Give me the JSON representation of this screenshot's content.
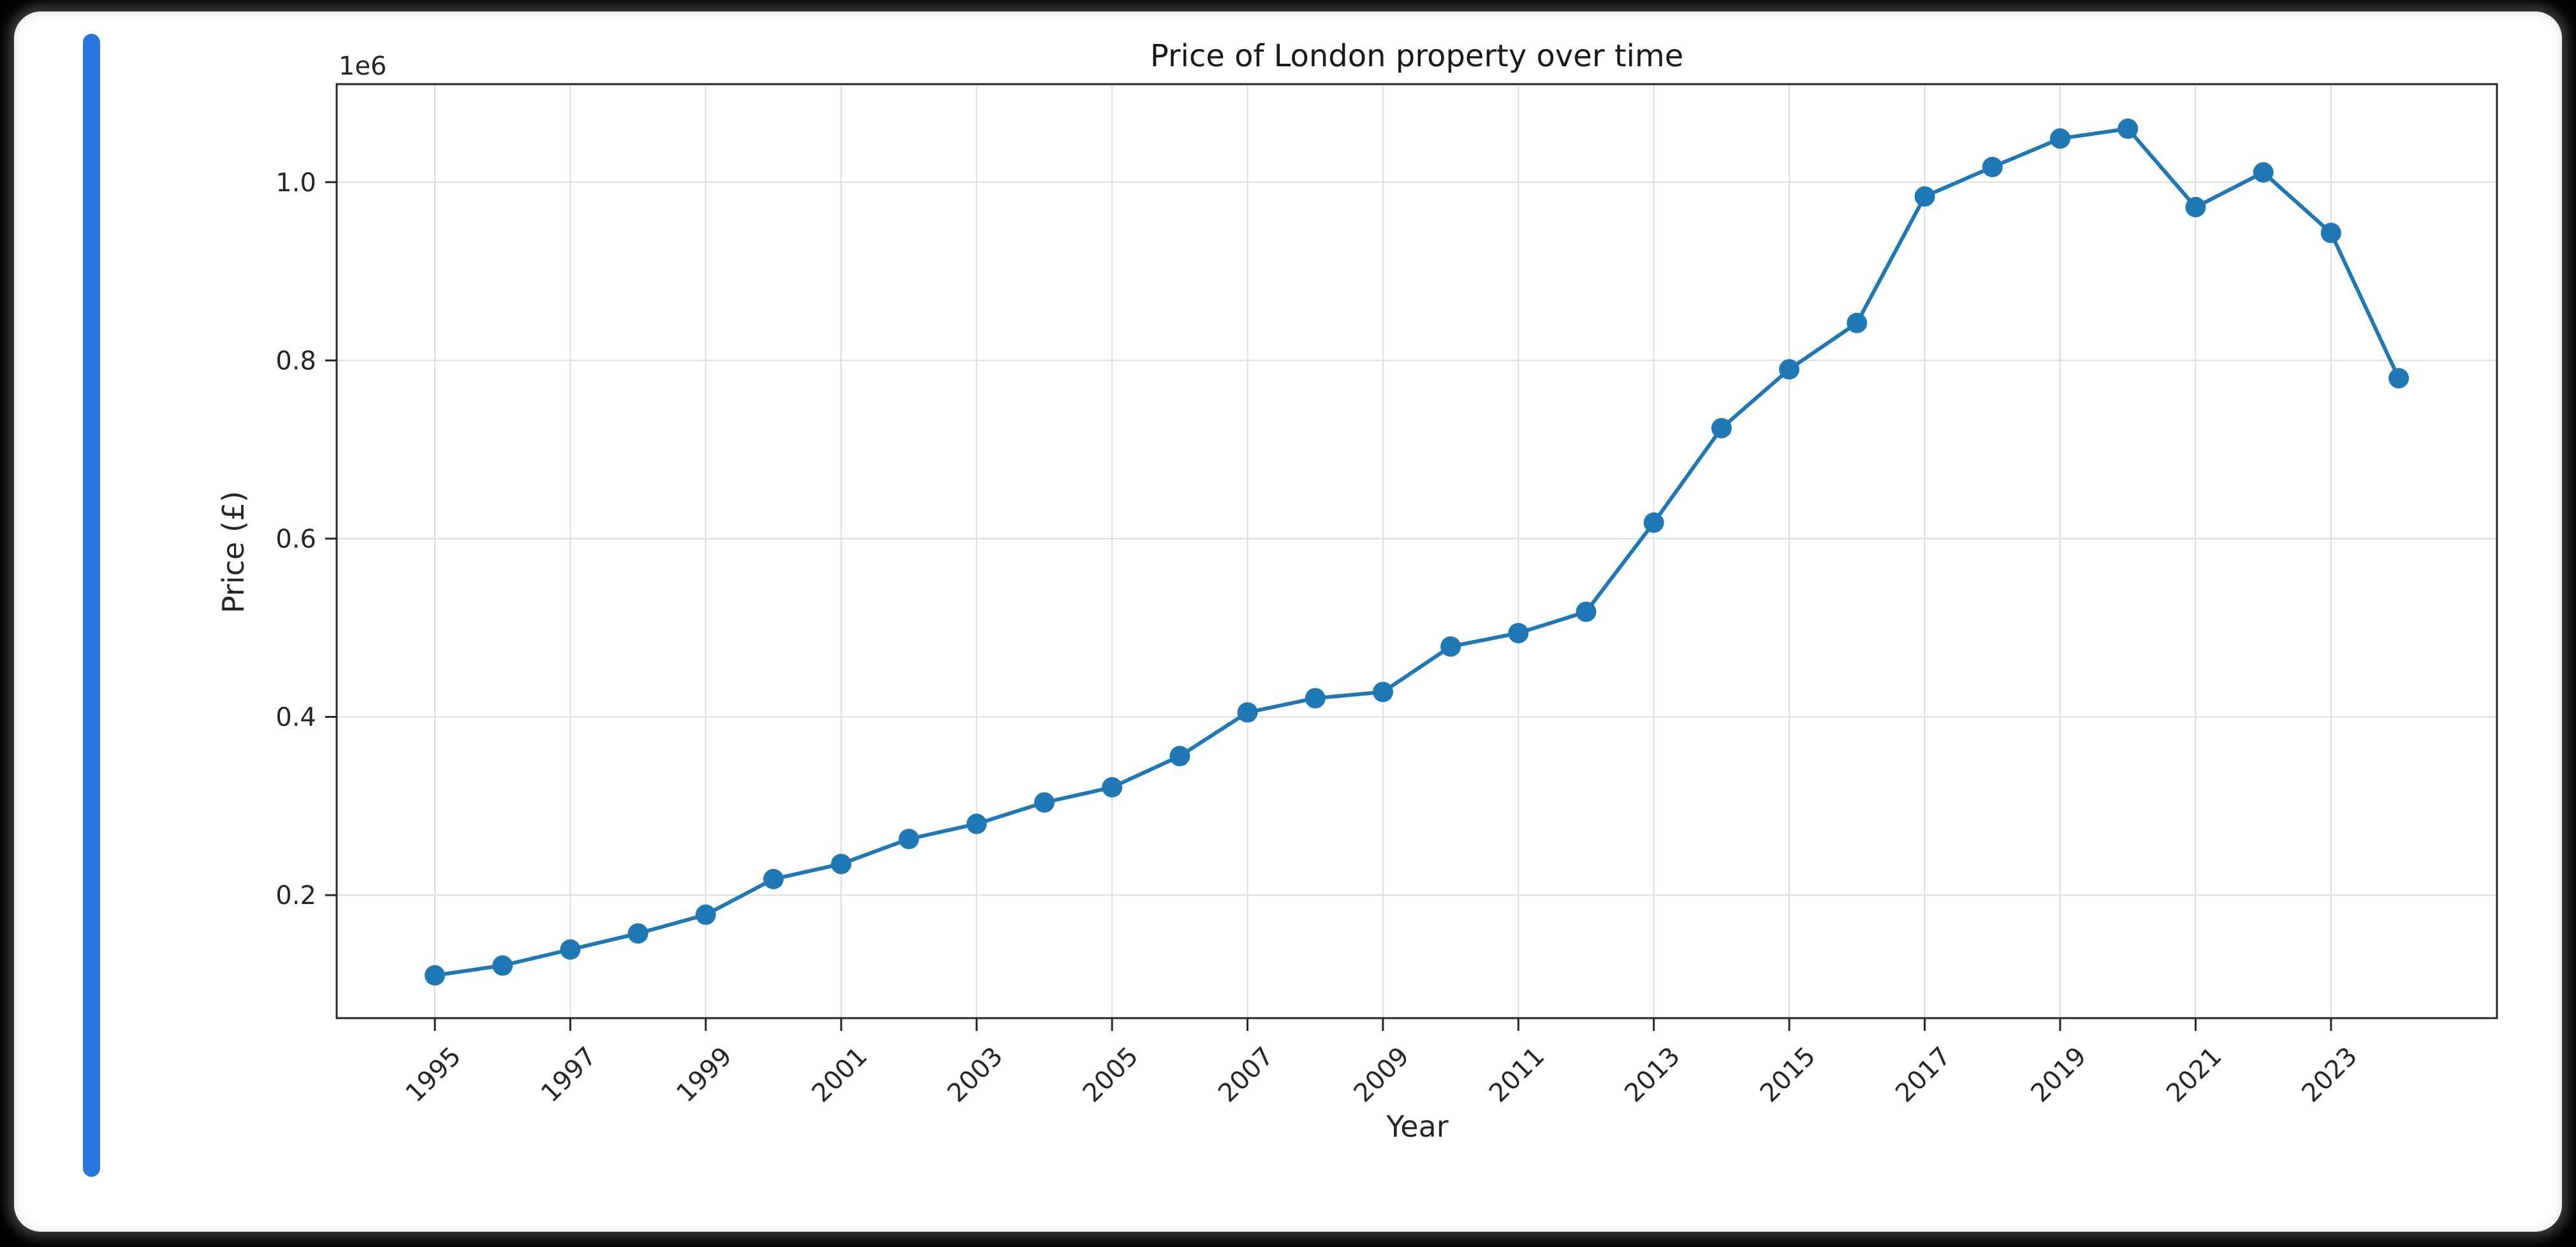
{
  "window": {
    "background_color": "#000000",
    "card_color": "#ffffff",
    "card_edge_color": "#cfcfcf",
    "scrollbar_color": "#2878dc"
  },
  "chart_data": {
    "type": "line",
    "title": "Price of London property over time",
    "xlabel": "Year",
    "ylabel": "Price (£)",
    "y_offset_label": "1e6",
    "legend": "none",
    "grid": true,
    "x": [
      1995,
      1996,
      1997,
      1998,
      1999,
      2000,
      2001,
      2002,
      2003,
      2004,
      2005,
      2006,
      2007,
      2008,
      2009,
      2010,
      2011,
      2012,
      2013,
      2014,
      2015,
      2016,
      2017,
      2018,
      2019,
      2020,
      2021,
      2022,
      2023,
      2024
    ],
    "values": [
      110000,
      121000,
      139000,
      157000,
      178000,
      218000,
      235000,
      263000,
      280000,
      304000,
      321000,
      356000,
      405000,
      421000,
      428000,
      479000,
      494000,
      518000,
      618000,
      724000,
      790000,
      842000,
      984000,
      1017000,
      1049000,
      1060000,
      972000,
      1011000,
      943000,
      780000
    ],
    "xticks": [
      1995,
      1997,
      1999,
      2001,
      2003,
      2005,
      2007,
      2009,
      2011,
      2013,
      2015,
      2017,
      2019,
      2021,
      2023
    ],
    "xtick_labels": [
      "1995",
      "1997",
      "1999",
      "2001",
      "2003",
      "2005",
      "2007",
      "2009",
      "2011",
      "2013",
      "2015",
      "2017",
      "2019",
      "2021",
      "2023"
    ],
    "yticks": [
      200000,
      400000,
      600000,
      800000,
      1000000
    ],
    "ytick_labels": [
      "0.2",
      "0.4",
      "0.6",
      "0.8",
      "1.0"
    ],
    "xlim": [
      1993.55,
      2025.45
    ],
    "ylim": [
      62000,
      1110000
    ],
    "line_color": "#1f77b4",
    "marker": "o",
    "grid_color": "#dcdcdc",
    "spine_color": "#262626",
    "text_color": "#262626"
  }
}
